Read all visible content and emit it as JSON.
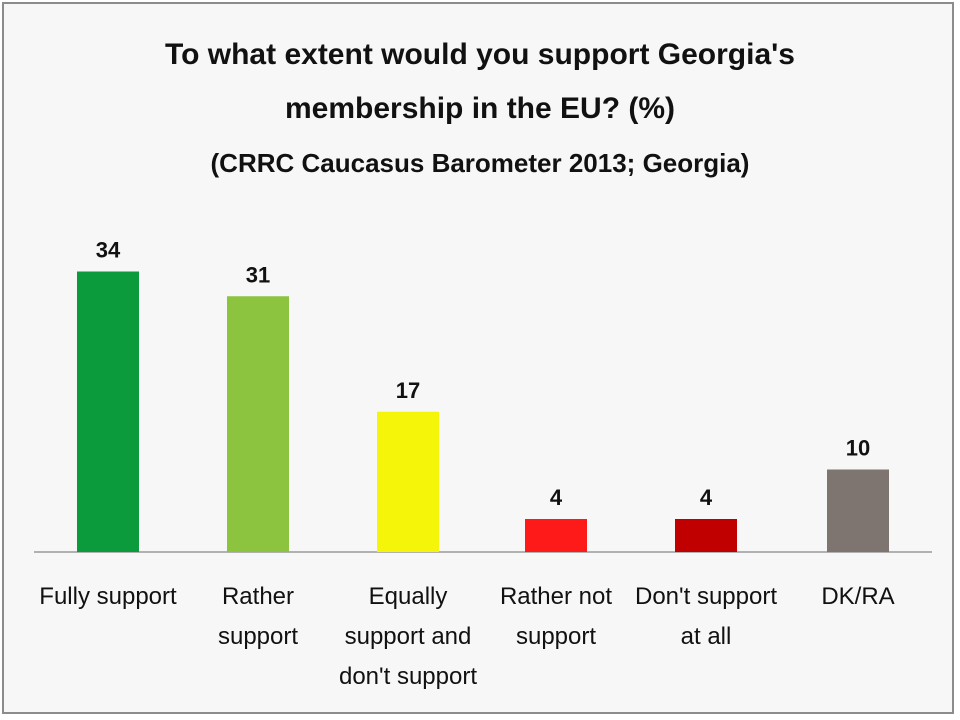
{
  "chart_data": {
    "type": "bar",
    "title": "To what extent would you support Georgia's membership in the EU? (%)",
    "title_lines": [
      "To what extent would you support Georgia's",
      "membership in the EU? (%)"
    ],
    "subtitle": "(CRRC Caucasus Barometer 2013; Georgia)",
    "categories": [
      "Fully support",
      "Rather support",
      "Equally support and don't support",
      "Rather not support",
      "Don't support at all",
      "DK/RA"
    ],
    "category_lines": [
      [
        "Fully support"
      ],
      [
        "Rather",
        "support"
      ],
      [
        "Equally",
        "support and",
        "don't support"
      ],
      [
        "Rather not",
        "support"
      ],
      [
        "Don't support",
        "at all"
      ],
      [
        "DK/RA"
      ]
    ],
    "values": [
      34,
      31,
      17,
      4,
      4,
      10
    ],
    "colors": [
      "#0b9a3c",
      "#8cc43f",
      "#f5f50a",
      "#ff1a1a",
      "#c00000",
      "#7f7570"
    ],
    "ylim": [
      0,
      40
    ],
    "grid": false,
    "legend": "none",
    "xlabel": "",
    "ylabel": ""
  }
}
